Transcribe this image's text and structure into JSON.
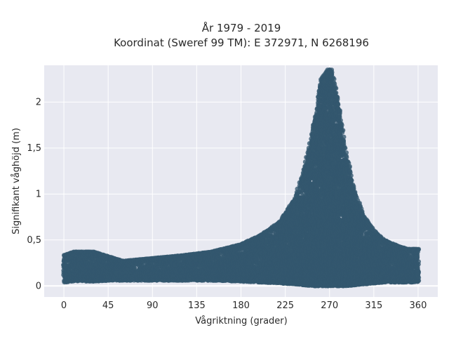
{
  "chart_data": {
    "type": "scatter",
    "title": [
      "År 1979 - 2019",
      "Koordinat (Sweref 99 TM): E 372971, N 6268196"
    ],
    "xlabel": "Vågriktning (grader)",
    "ylabel": "Signifikant våghöjd (m)",
    "xlim": [
      -20,
      380
    ],
    "ylim": [
      -0.12,
      2.4
    ],
    "x_ticks": [
      0,
      45,
      90,
      135,
      180,
      225,
      270,
      315,
      360
    ],
    "y_ticks": [
      0,
      0.5,
      1,
      1.5,
      2
    ],
    "x_tick_labels": [
      "0",
      "45",
      "90",
      "135",
      "180",
      "225",
      "270",
      "315",
      "360"
    ],
    "y_tick_labels": [
      "0",
      "0,5",
      "1",
      "1,5",
      "2"
    ],
    "grid": true,
    "background": "#e8e9f1",
    "grid_color": "#ffffff",
    "series": [
      {
        "color": "#33576e",
        "envelope": {
          "x": [
            0,
            10,
            30,
            45,
            60,
            90,
            120,
            150,
            180,
            200,
            220,
            235,
            245,
            255,
            262,
            268,
            272,
            278,
            285,
            295,
            305,
            315,
            325,
            340,
            350,
            360
          ],
          "y_min": [
            0.04,
            0.05,
            0.05,
            0.06,
            0.06,
            0.06,
            0.06,
            0.06,
            0.05,
            0.04,
            0.03,
            0.02,
            0.01,
            0.0,
            0.0,
            0.0,
            0.0,
            0.0,
            0.0,
            0.01,
            0.02,
            0.03,
            0.04,
            0.04,
            0.04,
            0.04
          ],
          "y_max": [
            0.33,
            0.37,
            0.37,
            0.32,
            0.27,
            0.3,
            0.33,
            0.37,
            0.45,
            0.55,
            0.7,
            0.95,
            1.3,
            1.8,
            2.25,
            2.35,
            2.35,
            2.05,
            1.55,
            1.05,
            0.75,
            0.6,
            0.5,
            0.43,
            0.4,
            0.4
          ]
        }
      }
    ]
  }
}
